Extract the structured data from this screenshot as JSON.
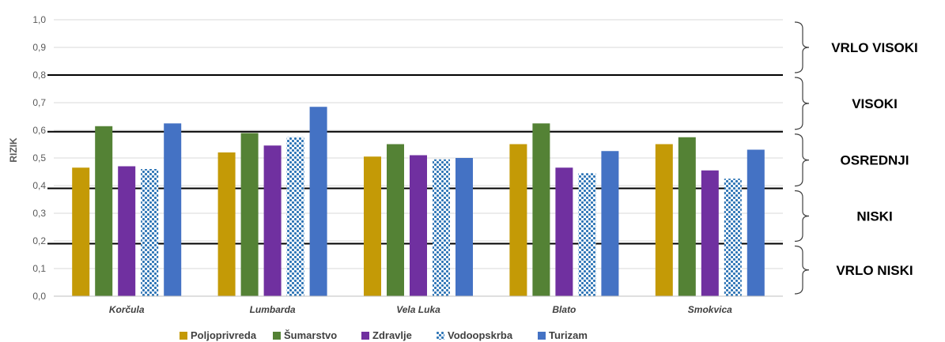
{
  "chart_data": {
    "type": "bar",
    "ylabel": "RIZIK",
    "xlabel": "",
    "ylim": [
      0,
      1.0
    ],
    "yticks": [
      "0,0",
      "0,1",
      "0,2",
      "0,3",
      "0,4",
      "0,5",
      "0,6",
      "0,7",
      "0,8",
      "0,9",
      "1,0"
    ],
    "categories": [
      "Korčula",
      "Lumbarda",
      "Vela Luka",
      "Blato",
      "Smokvica"
    ],
    "series": [
      {
        "name": "Poljoprivreda",
        "color": "#c49a06",
        "pattern": "solid",
        "values": [
          0.465,
          0.52,
          0.505,
          0.55,
          0.55
        ]
      },
      {
        "name": "Šumarstvo",
        "color": "#548235",
        "pattern": "solid",
        "values": [
          0.615,
          0.59,
          0.55,
          0.625,
          0.575
        ]
      },
      {
        "name": "Zdravlje",
        "color": "#7030a0",
        "pattern": "solid",
        "values": [
          0.47,
          0.545,
          0.51,
          0.465,
          0.455
        ]
      },
      {
        "name": "Vodoopskrba",
        "color": "#2e75b6",
        "pattern": "dotted",
        "values": [
          0.46,
          0.575,
          0.495,
          0.445,
          0.425
        ]
      },
      {
        "name": "Turizam",
        "color": "#4472c4",
        "pattern": "solid",
        "values": [
          0.625,
          0.685,
          0.5,
          0.525,
          0.53
        ]
      }
    ],
    "thresholds": [
      0.19,
      0.39,
      0.595,
      0.8
    ],
    "zones": [
      {
        "label": "VRLO VISOKI",
        "from": 0.8,
        "to": 1.0
      },
      {
        "label": "VISOKI",
        "from": 0.595,
        "to": 0.8
      },
      {
        "label": "OSREDNJI",
        "from": 0.39,
        "to": 0.595
      },
      {
        "label": "NISKI",
        "from": 0.19,
        "to": 0.39
      },
      {
        "label": "VRLO NISKI",
        "from": 0.0,
        "to": 0.19
      }
    ],
    "legend_position": "bottom",
    "grid": true
  }
}
